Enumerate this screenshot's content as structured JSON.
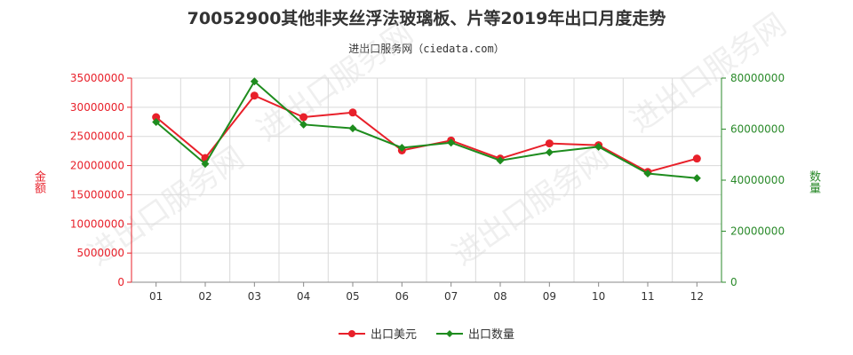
{
  "chart_data": {
    "type": "line",
    "title": "70052900其他非夹丝浮法玻璃板、片等2019年出口月度走势",
    "subtitle": "进出口服务网（ciedata.com）",
    "categories": [
      "01",
      "02",
      "03",
      "04",
      "05",
      "06",
      "07",
      "08",
      "09",
      "10",
      "11",
      "12"
    ],
    "y_left": {
      "label": "金额",
      "min": 0,
      "max": 35000000,
      "step": 5000000,
      "ticks": [
        "0",
        "5000000",
        "10000000",
        "15000000",
        "20000000",
        "25000000",
        "30000000",
        "35000000"
      ],
      "color": "#e8202a"
    },
    "y_right": {
      "label": "数量",
      "min": 0,
      "max": 80000000,
      "step": 20000000,
      "ticks": [
        "0",
        "20000000",
        "40000000",
        "60000000",
        "80000000"
      ],
      "color": "#2a8a2a"
    },
    "series": [
      {
        "name": "出口美元",
        "axis": "left",
        "color": "#e8202a",
        "values": [
          28300000,
          21300000,
          32000000,
          28300000,
          29100000,
          22600000,
          24300000,
          21200000,
          23800000,
          23500000,
          18900000,
          21200000
        ]
      },
      {
        "name": "出口数量",
        "axis": "right",
        "color": "#1e8c1e",
        "values": [
          62800000,
          46400000,
          78700000,
          61800000,
          60300000,
          52700000,
          54700000,
          47700000,
          50900000,
          53100000,
          42600000,
          40800000
        ]
      }
    ],
    "grid": true,
    "legend_position": "bottom"
  },
  "watermark": "进出口服务网"
}
